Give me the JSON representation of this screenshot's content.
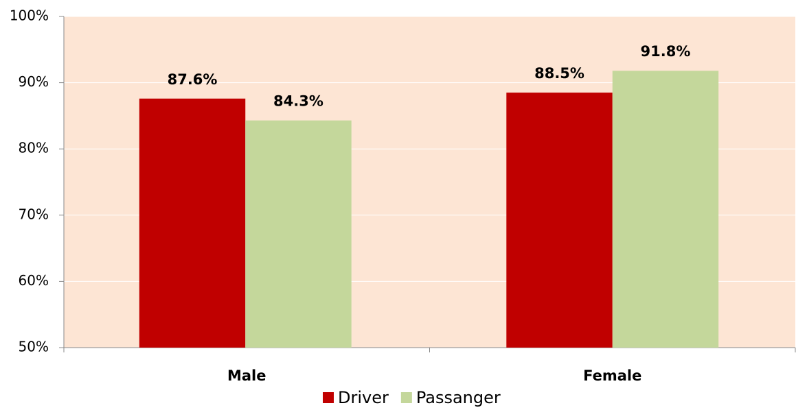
{
  "chart_data": {
    "type": "bar",
    "categories": [
      "Male",
      "Female"
    ],
    "series": [
      {
        "name": "Driver",
        "color": "#c00000",
        "values": [
          87.6,
          88.5
        ],
        "value_labels": [
          "87.6%",
          "88.5%"
        ]
      },
      {
        "name": "Passanger",
        "color": "#c4d79b",
        "values": [
          84.3,
          91.8
        ],
        "value_labels": [
          "84.3%",
          "91.8%"
        ]
      }
    ],
    "ylim": [
      50,
      100
    ],
    "yticks": [
      {
        "value": 50,
        "label": "50%"
      },
      {
        "value": 60,
        "label": "60%"
      },
      {
        "value": 70,
        "label": "70%"
      },
      {
        "value": 80,
        "label": "80%"
      },
      {
        "value": 90,
        "label": "90%"
      },
      {
        "value": 100,
        "label": "100%"
      }
    ],
    "grid": true,
    "legend": "bottom",
    "plot_background": "#fde5d4"
  }
}
